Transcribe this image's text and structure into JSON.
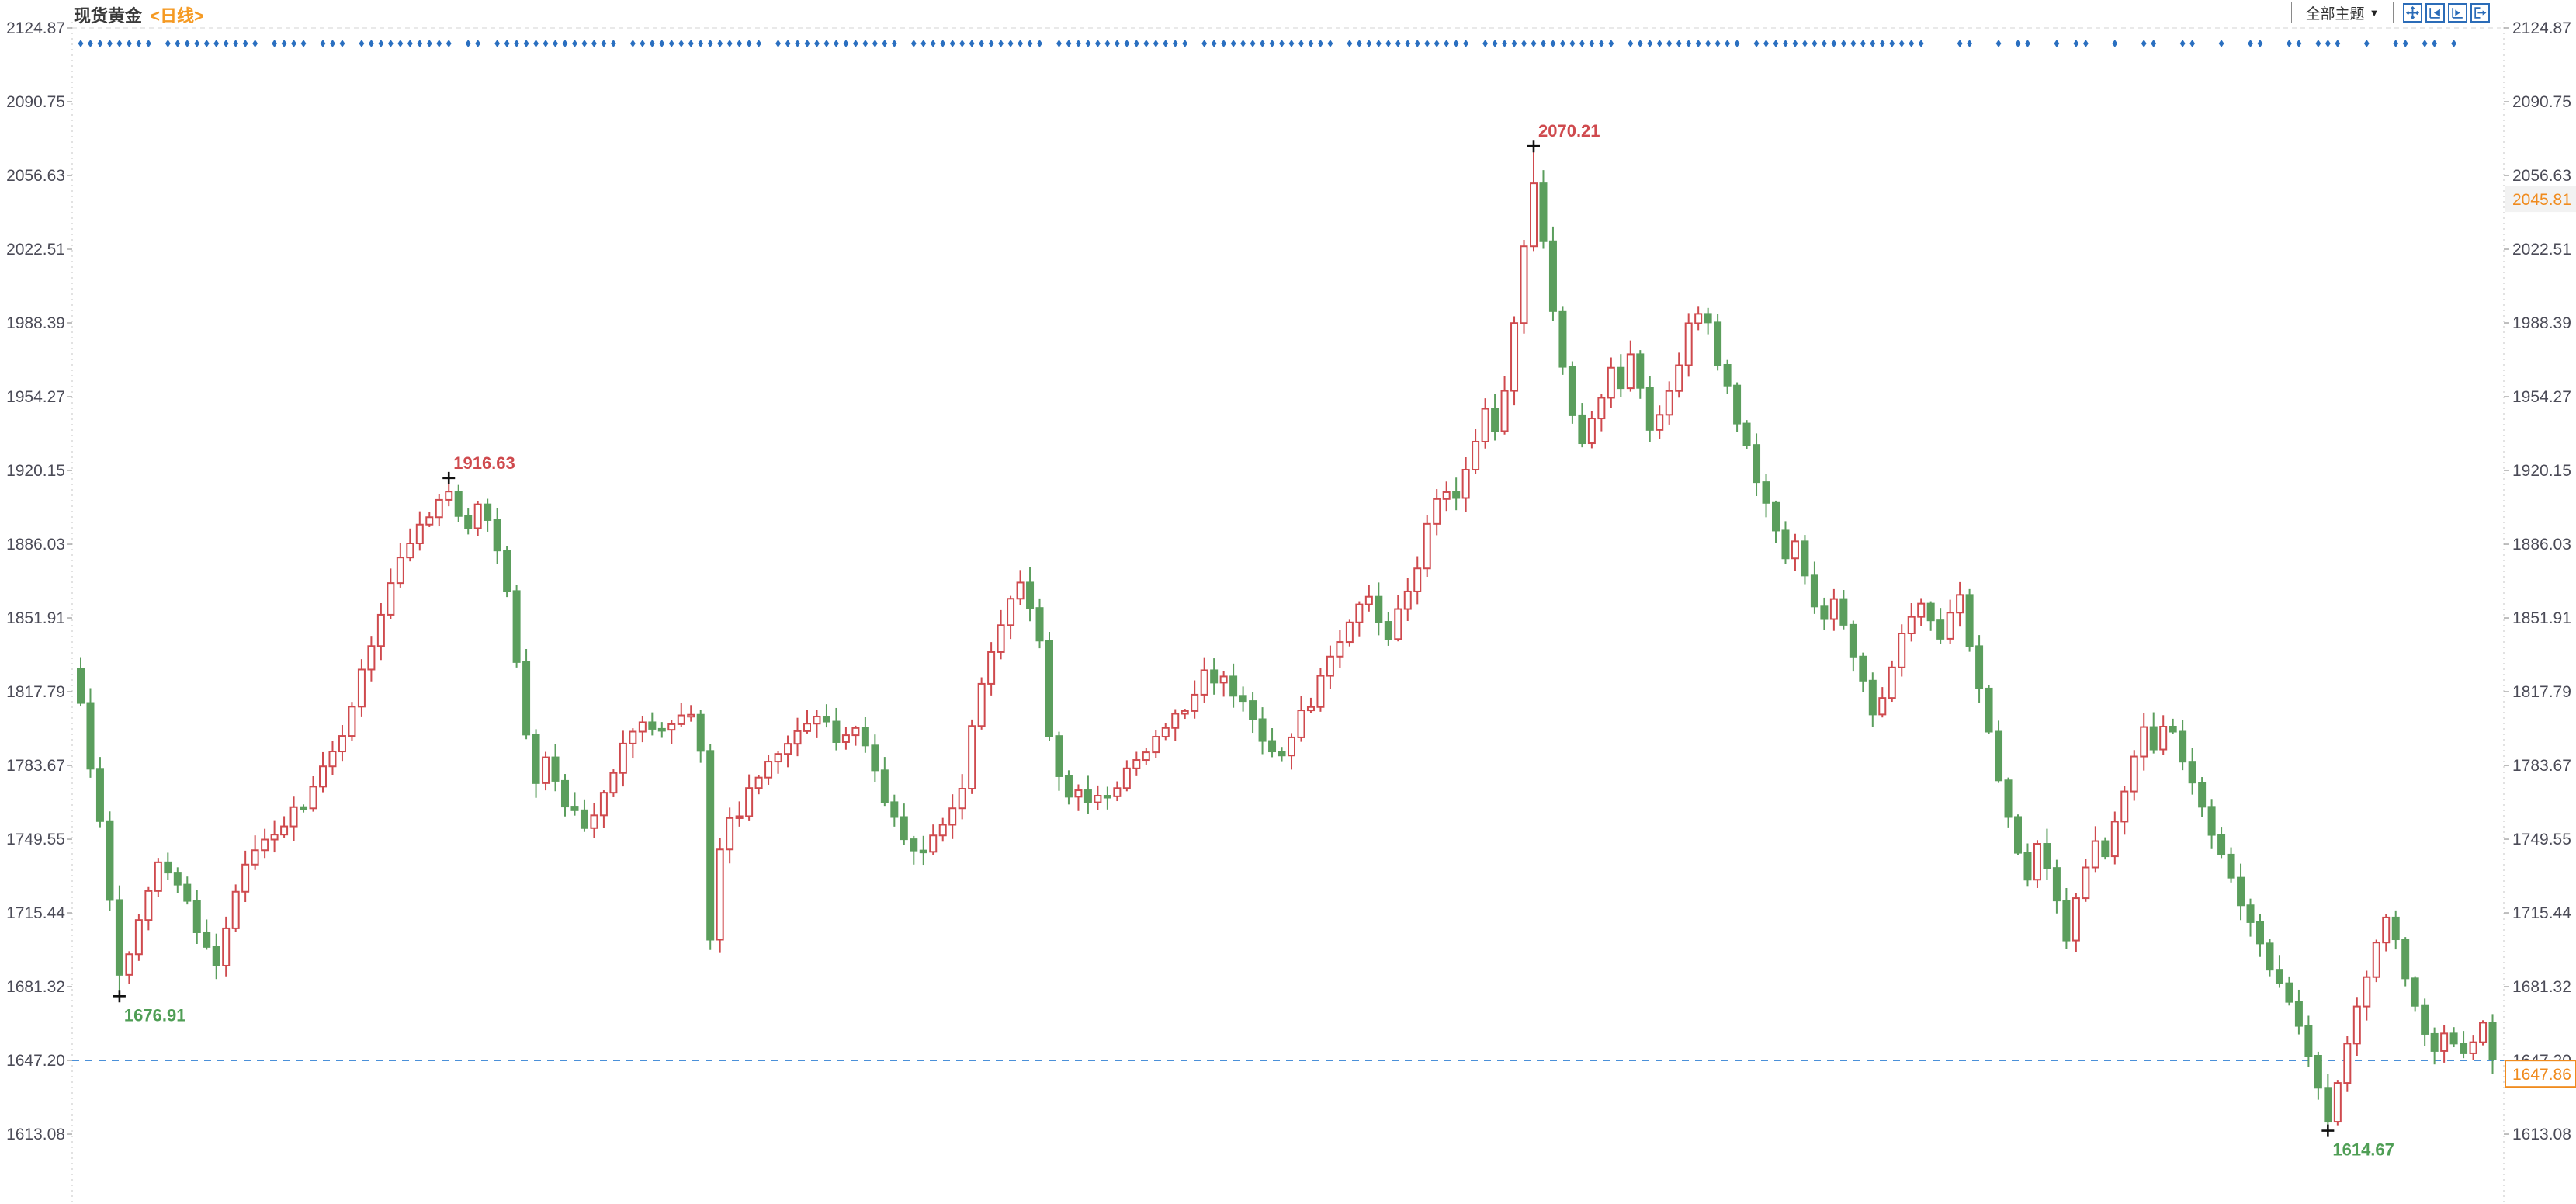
{
  "header": {
    "title": "现货黄金",
    "period": "<日线>"
  },
  "toolbar": {
    "theme_label": "全部主题",
    "arrow": "▼",
    "icons": [
      {
        "name": "pan-icon"
      },
      {
        "name": "step-backward-icon"
      },
      {
        "name": "step-forward-icon"
      },
      {
        "name": "go-to-end-icon"
      }
    ]
  },
  "chart_data": {
    "type": "candlestick",
    "title": "现货黄金",
    "timeframe": "日线",
    "candle_count": 250,
    "y_axis_top": 2124.87,
    "y_axis_bottom": 1613.08,
    "y_ticks": [
      "2124.87",
      "2090.75",
      "2056.63",
      "2022.51",
      "1988.39",
      "1954.27",
      "1920.15",
      "1886.03",
      "1851.91",
      "1817.79",
      "1783.67",
      "1749.55",
      "1715.44",
      "1681.32",
      "1647.20",
      "1613.08"
    ],
    "reference_line_value": 1647.2,
    "reference_line_label": "1647.20",
    "current_price": "1647.86",
    "secondary_price_label": "2045.81",
    "annotations": [
      {
        "index": 150,
        "value": "2070.21",
        "side": "high"
      },
      {
        "index": 38,
        "value": "1916.63",
        "side": "high"
      },
      {
        "index": 4,
        "value": "1676.91",
        "side": "low"
      },
      {
        "index": 232,
        "value": "1614.67",
        "side": "low"
      }
    ],
    "extremes": [
      {
        "index": 4,
        "low": 1676.91
      },
      {
        "index": 38,
        "high": 1916.63
      },
      {
        "index": 150,
        "high": 2070.21
      },
      {
        "index": 232,
        "low": 1614.67
      },
      {
        "index": 249,
        "close": 1647.86
      }
    ],
    "close_waypoints": [
      [
        0,
        1812
      ],
      [
        1,
        1782
      ],
      [
        2,
        1755
      ],
      [
        3,
        1720
      ],
      [
        4,
        1685
      ],
      [
        5,
        1695
      ],
      [
        6,
        1712
      ],
      [
        7,
        1728
      ],
      [
        8,
        1742
      ],
      [
        10,
        1730
      ],
      [
        12,
        1705
      ],
      [
        14,
        1692
      ],
      [
        15,
        1710
      ],
      [
        16,
        1728
      ],
      [
        18,
        1742
      ],
      [
        20,
        1752
      ],
      [
        22,
        1762
      ],
      [
        24,
        1772
      ],
      [
        26,
        1788
      ],
      [
        28,
        1812
      ],
      [
        30,
        1842
      ],
      [
        32,
        1868
      ],
      [
        34,
        1888
      ],
      [
        36,
        1902
      ],
      [
        38,
        1910
      ],
      [
        39,
        1898
      ],
      [
        40,
        1892
      ],
      [
        41,
        1902
      ],
      [
        42,
        1895
      ],
      [
        43,
        1885
      ],
      [
        44,
        1862
      ],
      [
        45,
        1832
      ],
      [
        46,
        1795
      ],
      [
        47,
        1778
      ],
      [
        48,
        1785
      ],
      [
        49,
        1778
      ],
      [
        50,
        1768
      ],
      [
        52,
        1758
      ],
      [
        54,
        1768
      ],
      [
        55,
        1782
      ],
      [
        56,
        1795
      ],
      [
        58,
        1802
      ],
      [
        60,
        1798
      ],
      [
        62,
        1806
      ],
      [
        63,
        1810
      ],
      [
        64,
        1792
      ],
      [
        65,
        1706
      ],
      [
        66,
        1742
      ],
      [
        67,
        1756
      ],
      [
        68,
        1762
      ],
      [
        70,
        1780
      ],
      [
        72,
        1792
      ],
      [
        74,
        1802
      ],
      [
        76,
        1806
      ],
      [
        78,
        1795
      ],
      [
        80,
        1802
      ],
      [
        82,
        1782
      ],
      [
        84,
        1758
      ],
      [
        86,
        1742
      ],
      [
        88,
        1750
      ],
      [
        90,
        1762
      ],
      [
        91,
        1772
      ],
      [
        92,
        1802
      ],
      [
        93,
        1822
      ],
      [
        94,
        1838
      ],
      [
        95,
        1852
      ],
      [
        96,
        1862
      ],
      [
        97,
        1868
      ],
      [
        98,
        1858
      ],
      [
        99,
        1838
      ],
      [
        100,
        1795
      ],
      [
        101,
        1778
      ],
      [
        102,
        1772
      ],
      [
        104,
        1766
      ],
      [
        106,
        1772
      ],
      [
        108,
        1780
      ],
      [
        110,
        1790
      ],
      [
        112,
        1800
      ],
      [
        114,
        1810
      ],
      [
        116,
        1828
      ],
      [
        118,
        1822
      ],
      [
        120,
        1812
      ],
      [
        122,
        1798
      ],
      [
        124,
        1788
      ],
      [
        126,
        1806
      ],
      [
        128,
        1822
      ],
      [
        130,
        1840
      ],
      [
        132,
        1858
      ],
      [
        133,
        1862
      ],
      [
        134,
        1850
      ],
      [
        135,
        1844
      ],
      [
        136,
        1858
      ],
      [
        138,
        1876
      ],
      [
        139,
        1892
      ],
      [
        140,
        1906
      ],
      [
        141,
        1912
      ],
      [
        142,
        1906
      ],
      [
        143,
        1922
      ],
      [
        144,
        1932
      ],
      [
        145,
        1946
      ],
      [
        146,
        1940
      ],
      [
        147,
        1960
      ],
      [
        148,
        1988
      ],
      [
        149,
        2022
      ],
      [
        150,
        2052
      ],
      [
        151,
        2028
      ],
      [
        152,
        1992
      ],
      [
        153,
        1965
      ],
      [
        154,
        1948
      ],
      [
        155,
        1936
      ],
      [
        156,
        1946
      ],
      [
        157,
        1956
      ],
      [
        158,
        1968
      ],
      [
        159,
        1960
      ],
      [
        160,
        1972
      ],
      [
        161,
        1960
      ],
      [
        162,
        1942
      ],
      [
        163,
        1948
      ],
      [
        164,
        1958
      ],
      [
        165,
        1972
      ],
      [
        166,
        1986
      ],
      [
        167,
        1996
      ],
      [
        168,
        1986
      ],
      [
        169,
        1972
      ],
      [
        170,
        1958
      ],
      [
        171,
        1944
      ],
      [
        172,
        1930
      ],
      [
        173,
        1916
      ],
      [
        174,
        1906
      ],
      [
        175,
        1892
      ],
      [
        176,
        1880
      ],
      [
        177,
        1886
      ],
      [
        178,
        1870
      ],
      [
        179,
        1856
      ],
      [
        180,
        1852
      ],
      [
        181,
        1862
      ],
      [
        182,
        1848
      ],
      [
        183,
        1832
      ],
      [
        184,
        1820
      ],
      [
        185,
        1808
      ],
      [
        186,
        1818
      ],
      [
        187,
        1832
      ],
      [
        188,
        1842
      ],
      [
        189,
        1852
      ],
      [
        190,
        1858
      ],
      [
        191,
        1848
      ],
      [
        192,
        1840
      ],
      [
        193,
        1852
      ],
      [
        194,
        1860
      ],
      [
        195,
        1842
      ],
      [
        196,
        1820
      ],
      [
        197,
        1800
      ],
      [
        198,
        1780
      ],
      [
        199,
        1760
      ],
      [
        200,
        1742
      ],
      [
        201,
        1730
      ],
      [
        202,
        1745
      ],
      [
        203,
        1735
      ],
      [
        204,
        1720
      ],
      [
        205,
        1706
      ],
      [
        206,
        1720
      ],
      [
        207,
        1736
      ],
      [
        208,
        1750
      ],
      [
        209,
        1744
      ],
      [
        210,
        1760
      ],
      [
        211,
        1775
      ],
      [
        212,
        1790
      ],
      [
        213,
        1800
      ],
      [
        214,
        1794
      ],
      [
        215,
        1804
      ],
      [
        216,
        1798
      ],
      [
        217,
        1788
      ],
      [
        218,
        1778
      ],
      [
        219,
        1768
      ],
      [
        220,
        1754
      ],
      [
        221,
        1740
      ],
      [
        222,
        1730
      ],
      [
        223,
        1720
      ],
      [
        224,
        1712
      ],
      [
        225,
        1700
      ],
      [
        226,
        1690
      ],
      [
        227,
        1682
      ],
      [
        228,
        1672
      ],
      [
        229,
        1662
      ],
      [
        230,
        1650
      ],
      [
        231,
        1638
      ],
      [
        232,
        1622
      ],
      [
        233,
        1640
      ],
      [
        234,
        1656
      ],
      [
        235,
        1672
      ],
      [
        236,
        1688
      ],
      [
        237,
        1700
      ],
      [
        238,
        1712
      ],
      [
        239,
        1704
      ],
      [
        240,
        1688
      ],
      [
        241,
        1674
      ],
      [
        242,
        1660
      ],
      [
        243,
        1650
      ],
      [
        244,
        1662
      ],
      [
        245,
        1654
      ],
      [
        246,
        1648
      ],
      [
        247,
        1656
      ],
      [
        248,
        1662
      ],
      [
        249,
        1648
      ]
    ],
    "event_marker_segments": [
      [
        0,
        7
      ],
      [
        9,
        18
      ],
      [
        20,
        23
      ],
      [
        25,
        27
      ],
      [
        29,
        38
      ],
      [
        40,
        41
      ],
      [
        43,
        55
      ],
      [
        57,
        70
      ],
      [
        72,
        84
      ],
      [
        86,
        99
      ],
      [
        101,
        114
      ],
      [
        116,
        129
      ],
      [
        131,
        143
      ],
      [
        145,
        158
      ],
      [
        160,
        171
      ],
      [
        173,
        190
      ],
      [
        194,
        195
      ],
      [
        198,
        198
      ],
      [
        200,
        201
      ],
      [
        204,
        204
      ],
      [
        206,
        207
      ],
      [
        210,
        210
      ],
      [
        213,
        214
      ],
      [
        217,
        218
      ],
      [
        221,
        221
      ],
      [
        224,
        225
      ],
      [
        228,
        229
      ],
      [
        231,
        233
      ],
      [
        236,
        236
      ],
      [
        239,
        240
      ],
      [
        242,
        243
      ],
      [
        245,
        245
      ]
    ],
    "colors": {
      "up": "#cf4a4e",
      "down": "#5b9e5d",
      "marker": "#2a6fc0",
      "reference_line": "#4a90d9",
      "annotation_high": "#cf4a4e",
      "annotation_low": "#4f9e55",
      "current_price": "#f08b1e",
      "axis_text": "#4b4b57",
      "secondary_label_bg": "#f2f2f2"
    },
    "legend_position": "none",
    "grid": "minimal"
  }
}
